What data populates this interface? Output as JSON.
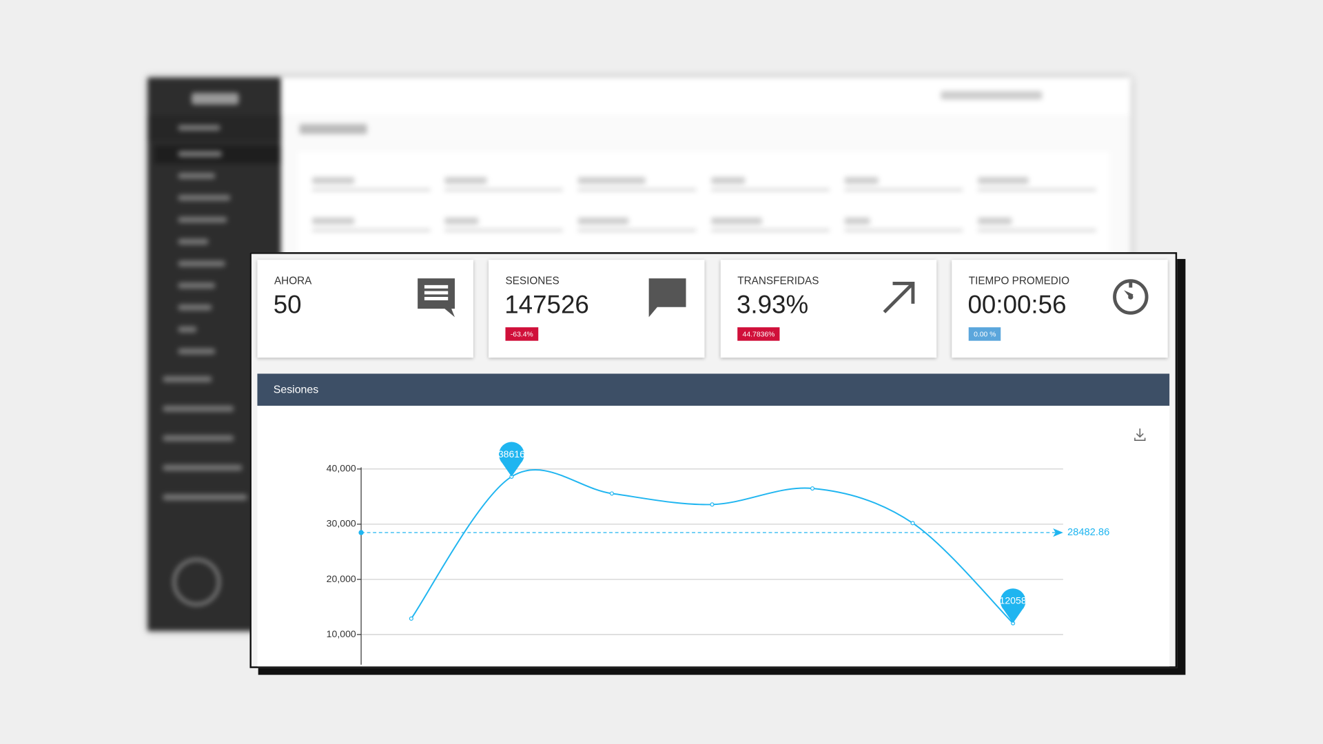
{
  "cards": [
    {
      "title": "AHORA",
      "value": "50"
    },
    {
      "title": "SESIONES",
      "value": "147526",
      "badge": "-63.4%",
      "badge_color": "#d0103a"
    },
    {
      "title": "TRANSFERIDAS",
      "value": "3.93%",
      "badge": "44.7836%",
      "badge_color": "#d0103a"
    },
    {
      "title": "TIEMPO PROMEDIO",
      "value": "00:00:56",
      "badge": "0.00 %",
      "badge_color": "#5ba6dc"
    }
  ],
  "chart_data": {
    "type": "line",
    "title": "Sesiones",
    "categories": [
      null,
      null,
      null,
      null,
      null,
      null,
      null
    ],
    "values": [
      12900,
      38616,
      35560,
      33570,
      36480,
      30200,
      12058
    ],
    "color": "#1fb5f0",
    "ylim": [
      5000,
      40000
    ],
    "yticks": [
      {
        "value": 10000,
        "label": "10,000"
      },
      {
        "value": 20000,
        "label": "20,000"
      },
      {
        "value": 30000,
        "label": "30,000"
      },
      {
        "value": 40000,
        "label": "40,000"
      }
    ],
    "grid": true,
    "mark_points": [
      38616,
      12058
    ],
    "mark_line": 28482.86
  }
}
